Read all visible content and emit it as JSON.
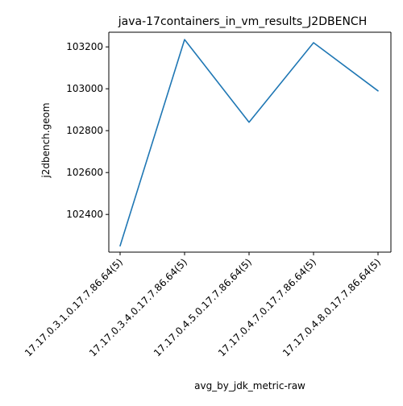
{
  "chart_data": {
    "type": "line",
    "title": "java-17containers_in_vm_results_J2DBENCH",
    "xlabel": "avg_by_jdk_metric-raw",
    "ylabel": "j2dbench.geom",
    "categories": [
      "17.17.0.3.1.0.17.7.86.64(5)",
      "17.17.0.3.4.0.17.7.86.64(5)",
      "17.17.0.4.5.0.17.7.86.64(5)",
      "17.17.0.4.7.0.17.7.86.64(5)",
      "17.17.0.4.8.0.17.7.86.64(5)"
    ],
    "series": [
      {
        "values": [
          102250,
          103235,
          102840,
          103220,
          102990
        ]
      }
    ],
    "ylim": [
      102220,
      103270
    ],
    "yticks": [
      102400,
      102600,
      102800,
      103000,
      103200
    ],
    "ytick_labels": [
      "102400",
      "102600",
      "102800",
      "103000",
      "103200"
    ],
    "grid": false,
    "legend": "none",
    "line_color": "#1f77b4"
  }
}
